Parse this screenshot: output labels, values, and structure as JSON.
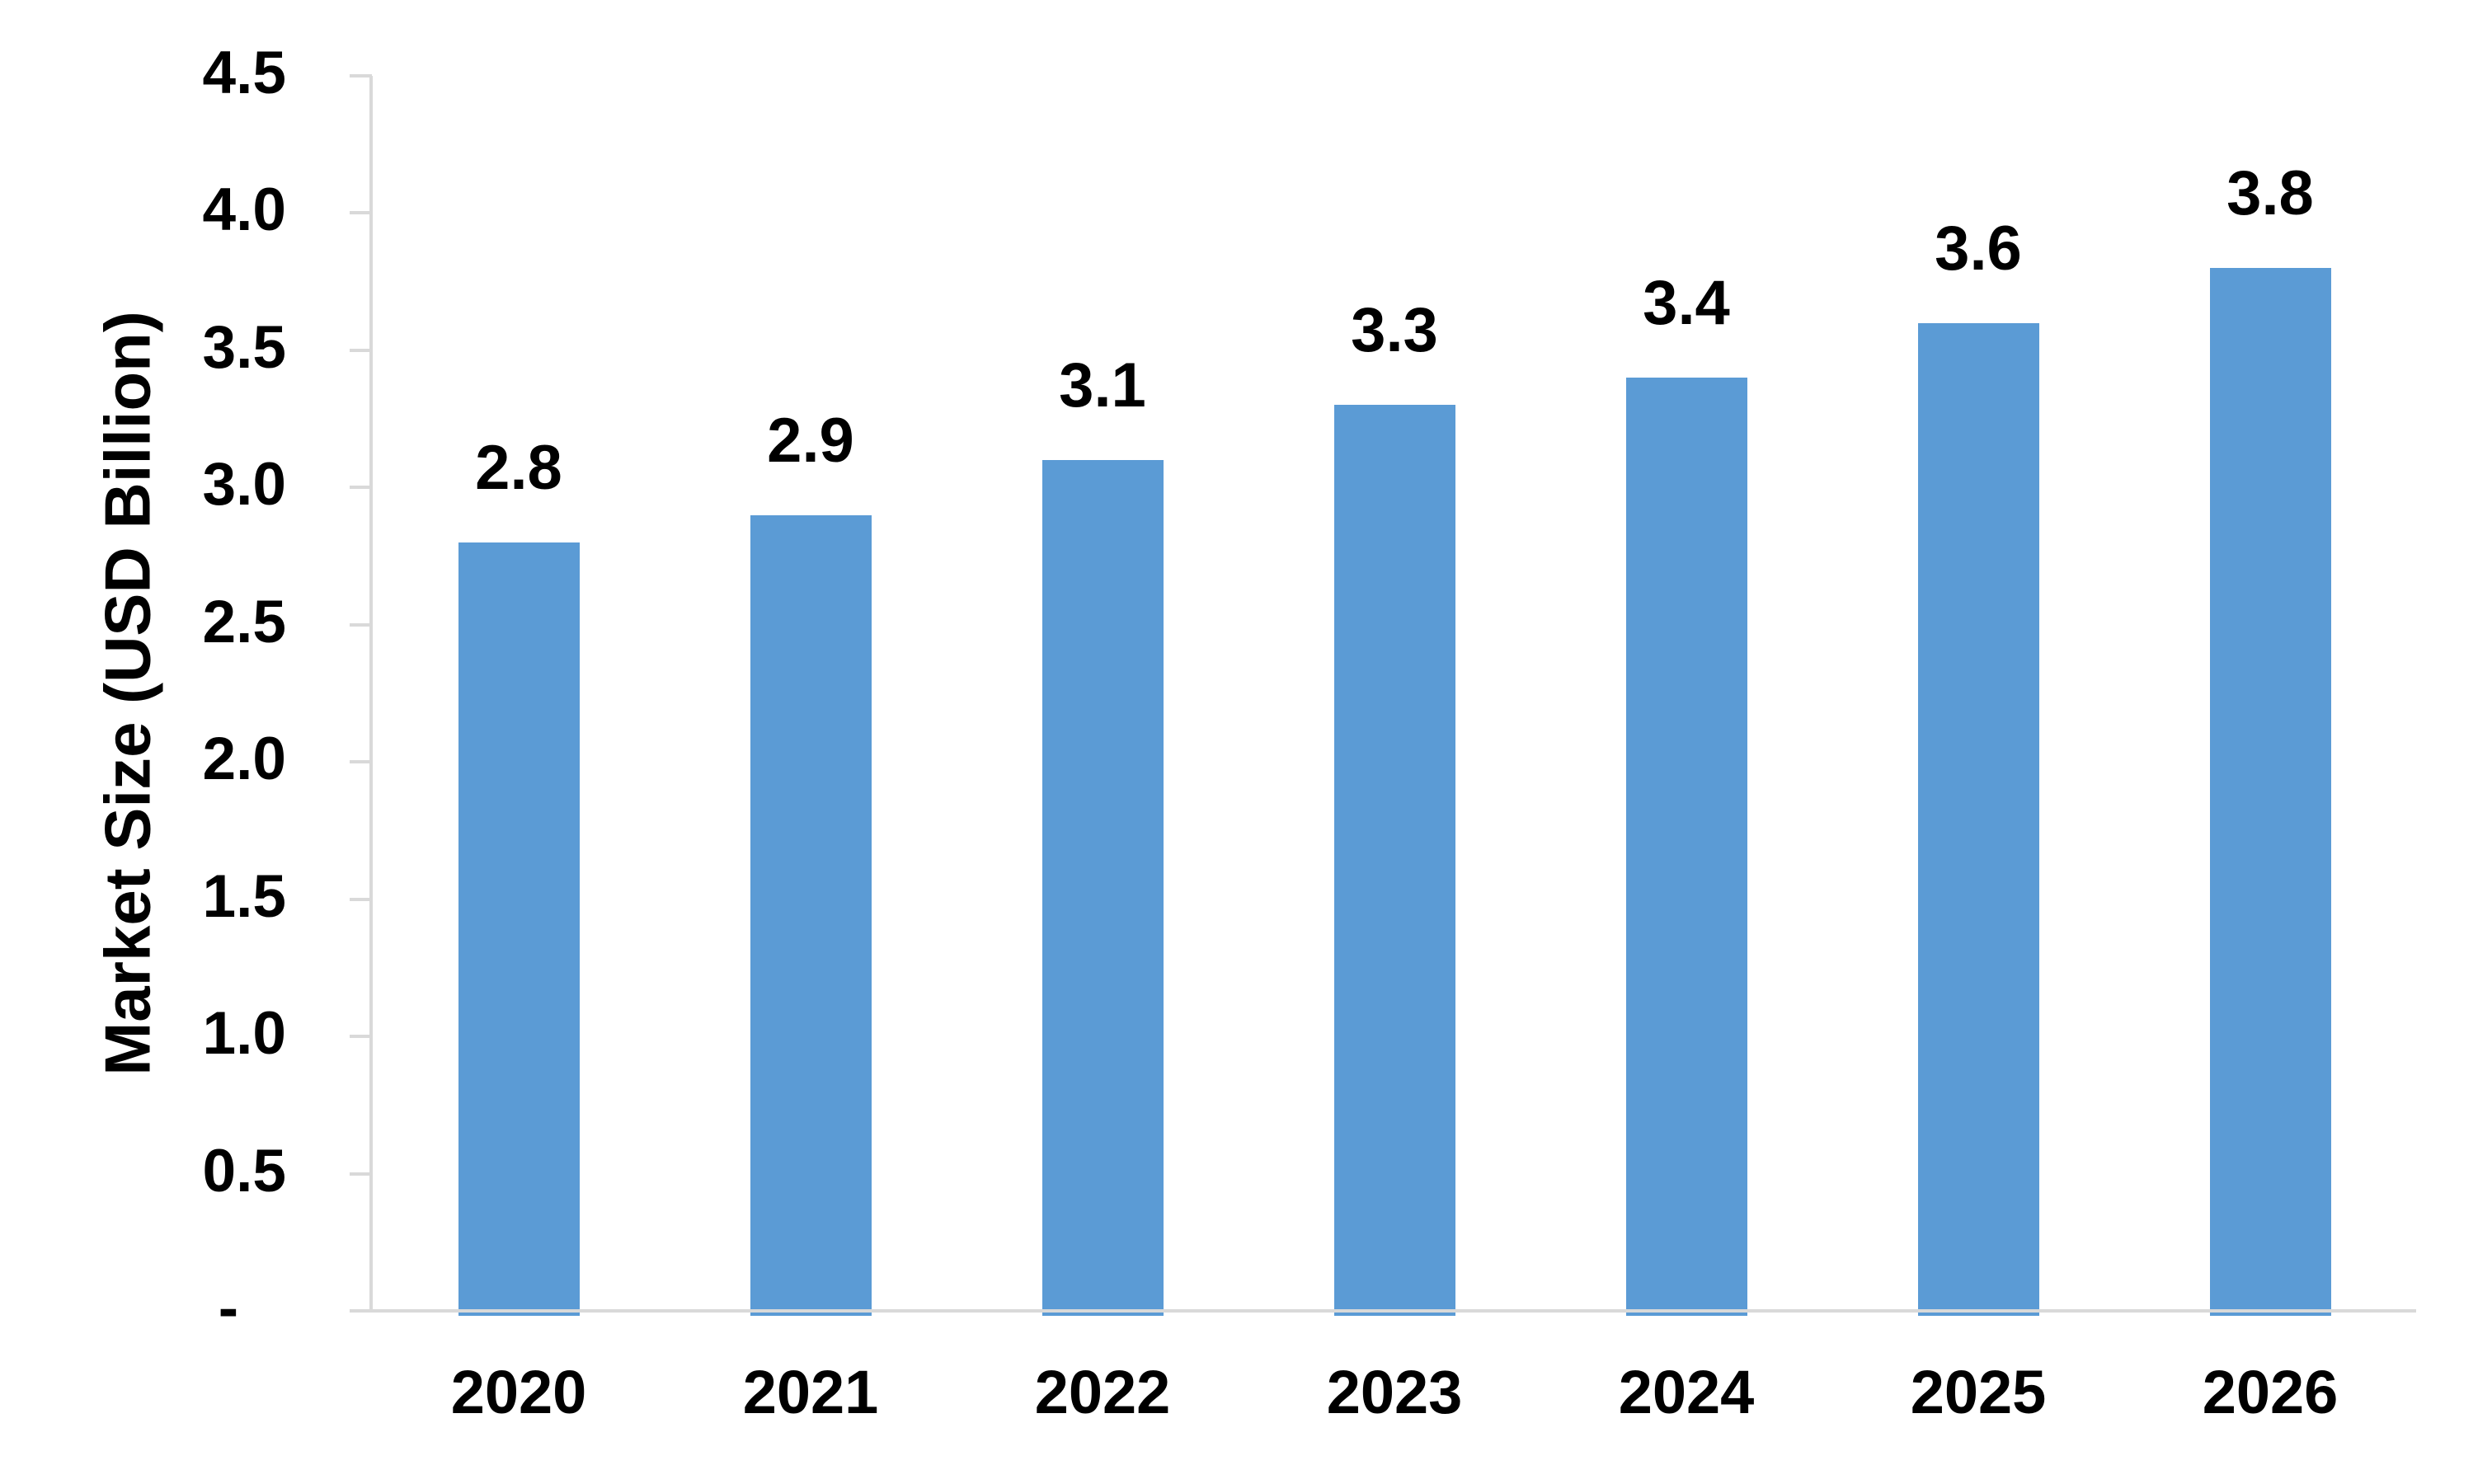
{
  "chart_data": {
    "type": "bar",
    "categories": [
      "2020",
      "2021",
      "2022",
      "2023",
      "2024",
      "2025",
      "2026"
    ],
    "values": [
      2.8,
      2.9,
      3.1,
      3.3,
      3.4,
      3.6,
      3.8
    ],
    "data_labels": [
      "2.8",
      "2.9",
      "3.1",
      "3.3",
      "3.4",
      "3.6",
      "3.8"
    ],
    "xlabel": "",
    "ylabel": "Market Size (USD Billion)",
    "ylim": [
      0,
      4.5
    ],
    "ytick_step": 0.5,
    "ytick_labels": [
      "-",
      "0.5",
      "1.0",
      "1.5",
      "2.0",
      "2.5",
      "3.0",
      "3.5",
      "4.0",
      "4.5"
    ],
    "grid": false,
    "legend": "none",
    "data_label_position": "outside-end",
    "bar_color": "#5B9BD5",
    "axis_color": "#D9D9D9",
    "text_color": "#000000"
  }
}
